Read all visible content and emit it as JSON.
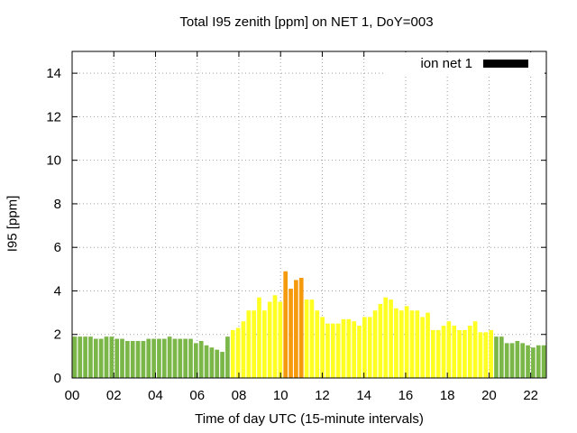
{
  "chart_data": {
    "type": "bar",
    "title": "Total I95 zenith [ppm] on NET 1, DoY=003",
    "xlabel": "Time of day UTC (15-minute intervals)",
    "ylabel": "I95 [ppm]",
    "ylim": [
      0,
      15
    ],
    "xlim": [
      0,
      22.75
    ],
    "x_ticks": [
      "00",
      "02",
      "04",
      "06",
      "08",
      "10",
      "12",
      "14",
      "16",
      "18",
      "20",
      "22"
    ],
    "y_ticks": [
      "0",
      "2",
      "4",
      "6",
      "8",
      "10",
      "12",
      "14"
    ],
    "grid": true,
    "legend": {
      "label": "ion net 1",
      "color": "#000000",
      "position": "top-right"
    },
    "colors": {
      "low": "#7ab648",
      "medium": "#ffff22",
      "high": "#f59a0c"
    },
    "series": [
      {
        "name": "ion net 1",
        "values": [
          1.9,
          1.9,
          1.9,
          1.9,
          1.8,
          1.8,
          1.9,
          1.9,
          1.8,
          1.8,
          1.7,
          1.7,
          1.7,
          1.7,
          1.8,
          1.8,
          1.8,
          1.8,
          1.9,
          1.8,
          1.8,
          1.8,
          1.8,
          1.6,
          1.7,
          1.5,
          1.4,
          1.3,
          1.2,
          1.9,
          2.2,
          2.3,
          2.6,
          3.1,
          3.1,
          3.7,
          3.1,
          3.5,
          3.8,
          3.5,
          4.9,
          4.1,
          4.5,
          4.6,
          3.6,
          3.6,
          3.1,
          2.8,
          2.5,
          2.5,
          2.5,
          2.7,
          2.7,
          2.6,
          2.4,
          2.8,
          2.8,
          3.1,
          3.4,
          3.7,
          3.6,
          3.2,
          3.1,
          3.3,
          3.1,
          3.1,
          2.8,
          3.0,
          2.2,
          2.2,
          2.4,
          2.6,
          2.4,
          2.2,
          2.2,
          2.4,
          2.6,
          2.1,
          2.1,
          2.2,
          1.9,
          1.9,
          1.6,
          1.6,
          1.7,
          1.6,
          1.5,
          1.4,
          1.5,
          1.5
        ],
        "levels": [
          "low",
          "low",
          "low",
          "low",
          "low",
          "low",
          "low",
          "low",
          "low",
          "low",
          "low",
          "low",
          "low",
          "low",
          "low",
          "low",
          "low",
          "low",
          "low",
          "low",
          "low",
          "low",
          "low",
          "low",
          "low",
          "low",
          "low",
          "low",
          "low",
          "low",
          "medium",
          "medium",
          "medium",
          "medium",
          "medium",
          "medium",
          "medium",
          "medium",
          "medium",
          "medium",
          "high",
          "high",
          "high",
          "high",
          "medium",
          "medium",
          "medium",
          "medium",
          "medium",
          "medium",
          "medium",
          "medium",
          "medium",
          "medium",
          "medium",
          "medium",
          "medium",
          "medium",
          "medium",
          "medium",
          "medium",
          "medium",
          "medium",
          "medium",
          "medium",
          "medium",
          "medium",
          "medium",
          "medium",
          "medium",
          "medium",
          "medium",
          "medium",
          "medium",
          "medium",
          "medium",
          "medium",
          "medium",
          "medium",
          "medium",
          "low",
          "low",
          "low",
          "low",
          "low",
          "low",
          "low",
          "low",
          "low",
          "low"
        ]
      }
    ]
  }
}
